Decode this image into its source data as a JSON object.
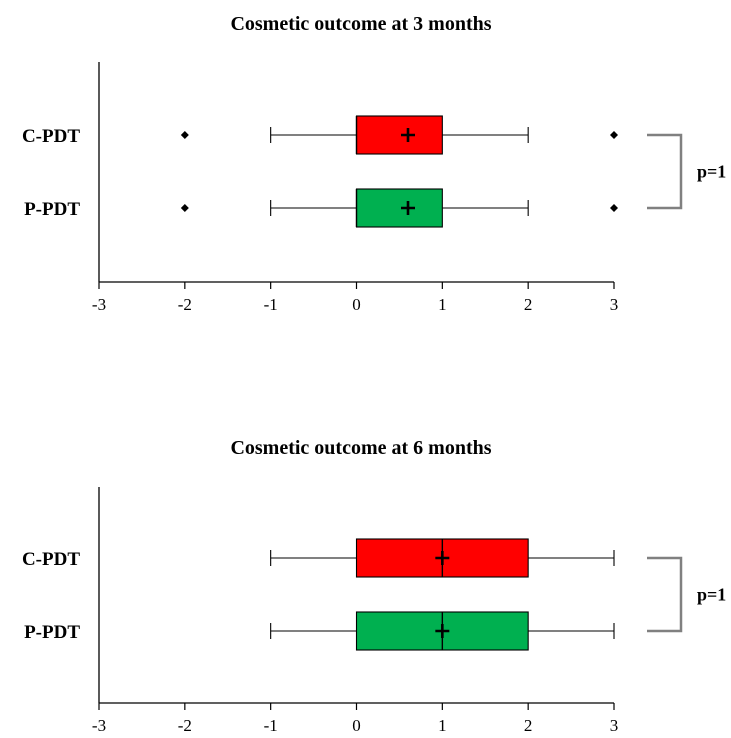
{
  "chart_data": [
    {
      "type": "box",
      "orientation": "horizontal",
      "title": "Cosmetic outcome at 3 months",
      "xlim": [
        -3,
        3
      ],
      "x_ticks": [
        "-3",
        "-2",
        "-1",
        "0",
        "1",
        "2",
        "3"
      ],
      "categories": [
        "C-PDT",
        "P-PDT"
      ],
      "series": [
        {
          "category": "C-PDT",
          "color": "#ff0000",
          "whisker_low": -1,
          "q1": 0,
          "median": 0,
          "q3": 1,
          "whisker_high": 2,
          "mean": 0.6,
          "outliers": [
            -2,
            3
          ]
        },
        {
          "category": "P-PDT",
          "color": "#00b050",
          "whisker_low": -1,
          "q1": 0,
          "median": 0,
          "q3": 1,
          "whisker_high": 2,
          "mean": 0.6,
          "outliers": [
            -2,
            3
          ]
        }
      ],
      "p_value": "p=1",
      "grid": false
    },
    {
      "type": "box",
      "orientation": "horizontal",
      "title": "Cosmetic outcome at 6 months",
      "xlim": [
        -3,
        3
      ],
      "x_ticks": [
        "-3",
        "-2",
        "-1",
        "0",
        "1",
        "2",
        "3"
      ],
      "categories": [
        "C-PDT",
        "P-PDT"
      ],
      "series": [
        {
          "category": "C-PDT",
          "color": "#ff0000",
          "whisker_low": -1,
          "q1": 0,
          "median": 1,
          "q3": 2,
          "whisker_high": 3,
          "mean": 1.0,
          "outliers": []
        },
        {
          "category": "P-PDT",
          "color": "#00b050",
          "whisker_low": -1,
          "q1": 0,
          "median": 1,
          "q3": 2,
          "whisker_high": 3,
          "mean": 1.0,
          "outliers": []
        }
      ],
      "p_value": "p=1",
      "grid": false
    }
  ]
}
